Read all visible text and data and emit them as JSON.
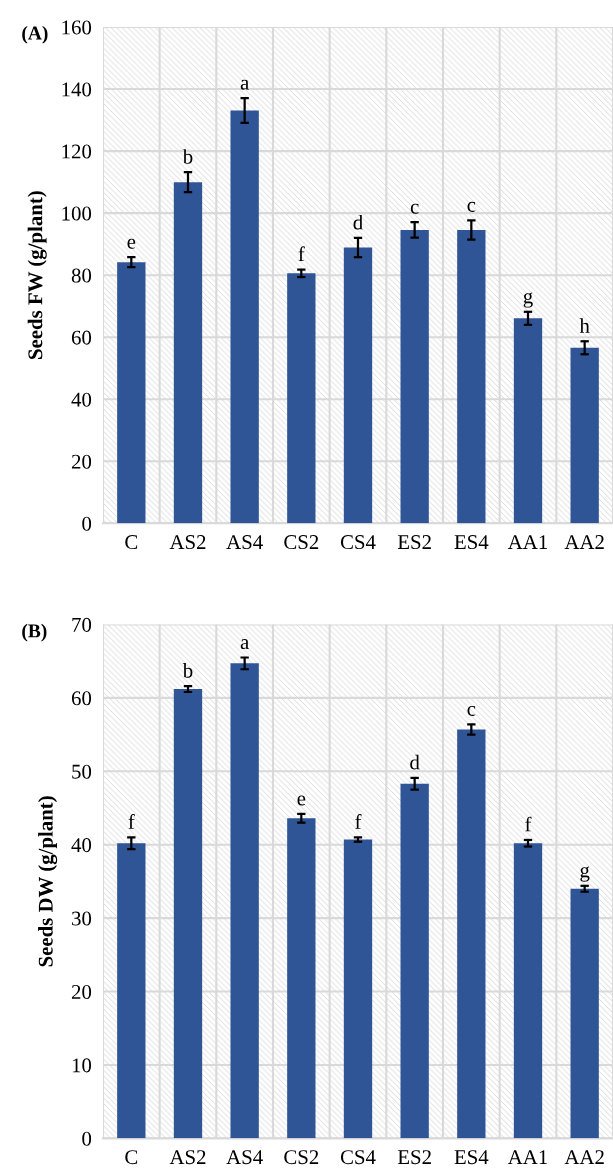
{
  "chart_data": [
    {
      "type": "bar",
      "title": "(A)",
      "ylabel": "Seeds FW (g/plant)",
      "categories": [
        "C",
        "AS2",
        "AS4",
        "CS2",
        "CS4",
        "ES2",
        "ES4",
        "AA1",
        "AA2"
      ],
      "values": [
        84.2,
        110,
        133.1,
        80.6,
        88.9,
        94.6,
        94.6,
        66.1,
        56.6
      ],
      "errors": [
        1.6,
        3.2,
        4,
        1.2,
        3.1,
        2.5,
        3.1,
        2.1,
        2.1
      ],
      "color": "#2f5597",
      "ylim": [
        0,
        160
      ],
      "yticks": [
        0,
        20,
        40,
        60,
        80,
        100,
        120,
        140,
        160
      ],
      "grid": true,
      "annotations": [
        {
          "text": "e",
          "x": "C",
          "y": 85.8
        },
        {
          "text": "b",
          "x": "AS2",
          "y": 113.2
        },
        {
          "text": "a",
          "x": "AS4",
          "y": 137.1
        },
        {
          "text": "f",
          "x": "CS2",
          "y": 81.8
        },
        {
          "text": "d",
          "x": "CS4",
          "y": 92
        },
        {
          "text": "c",
          "x": "ES2",
          "y": 97.1
        },
        {
          "text": "c",
          "x": "ES4",
          "y": 97.7
        },
        {
          "text": "g",
          "x": "AA1",
          "y": 68.2
        },
        {
          "text": "h",
          "x": "AA2",
          "y": 58.7
        }
      ]
    },
    {
      "type": "bar",
      "title": "(B)",
      "ylabel": "Seeds DW (g/plant)",
      "categories": [
        "C",
        "AS2",
        "AS4",
        "CS2",
        "CS4",
        "ES2",
        "ES4",
        "AA1",
        "AA2"
      ],
      "values": [
        40.2,
        61.2,
        64.7,
        43.6,
        40.7,
        48.3,
        55.7,
        40.2,
        34.0
      ],
      "errors": [
        0.8,
        0.4,
        0.8,
        0.6,
        0.3,
        0.8,
        0.7,
        0.45,
        0.4
      ],
      "color": "#2f5597",
      "ylim": [
        0,
        70
      ],
      "yticks": [
        0,
        10,
        20,
        30,
        40,
        50,
        60,
        70
      ],
      "grid": true,
      "annotations": [
        {
          "text": "f",
          "x": "C",
          "y": 41
        },
        {
          "text": "b",
          "x": "AS2",
          "y": 61.6
        },
        {
          "text": "a",
          "x": "AS4",
          "y": 65.5
        },
        {
          "text": "e",
          "x": "CS2",
          "y": 44.2
        },
        {
          "text": "f",
          "x": "CS4",
          "y": 41
        },
        {
          "text": "d",
          "x": "ES2",
          "y": 49.1
        },
        {
          "text": "c",
          "x": "ES4",
          "y": 56.4
        },
        {
          "text": "f",
          "x": "AA1",
          "y": 40.65
        },
        {
          "text": "g",
          "x": "AA2",
          "y": 34.4
        }
      ]
    }
  ]
}
